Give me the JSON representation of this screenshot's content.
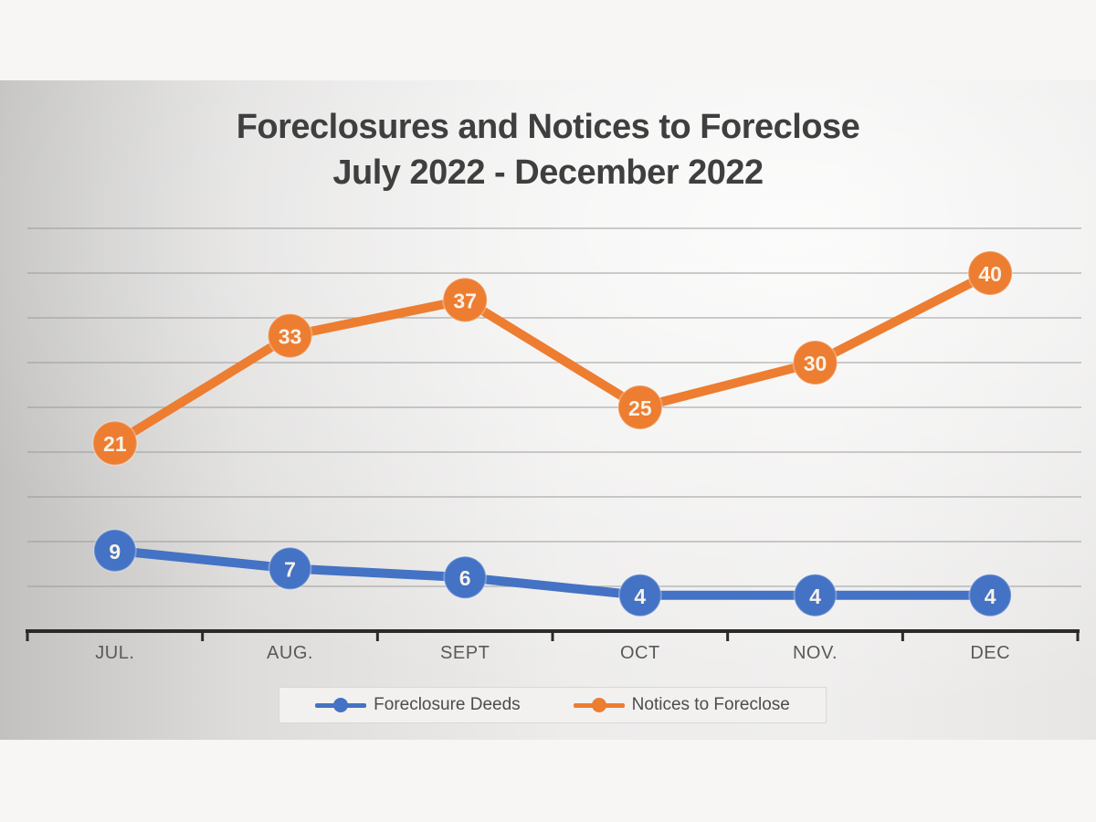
{
  "colors": {
    "series_blue": "#4472C4",
    "series_orange": "#ED7D31",
    "title_text": "#3F3F3F",
    "axis_text": "#595959",
    "gridline": "#989796",
    "axis_line": "#2B2A29",
    "data_label_text": "#F7F2E8",
    "page_bg": "#F7F6F5",
    "legend_bg": "#F2F1F0"
  },
  "chart_data": {
    "type": "line",
    "title": "Foreclosures and Notices to Foreclose",
    "subtitle": "July 2022 - December 2022",
    "categories": [
      "JUL.",
      "AUG.",
      "SEPT",
      "OCT",
      "NOV.",
      "DEC"
    ],
    "series": [
      {
        "name": "Foreclosure Deeds",
        "color": "#4472C4",
        "values": [
          9,
          7,
          6,
          4,
          4,
          4
        ]
      },
      {
        "name": "Notices to Foreclose",
        "color": "#ED7D31",
        "values": [
          21,
          33,
          37,
          25,
          30,
          40
        ]
      }
    ],
    "ylim": [
      0,
      45
    ],
    "grid": true,
    "grid_step": 5,
    "y_axis_labels_shown": false,
    "x_axis_ticks": "category boundaries",
    "legend_position": "bottom",
    "data_labels": "inside markers",
    "marker_style": "filled circle"
  }
}
